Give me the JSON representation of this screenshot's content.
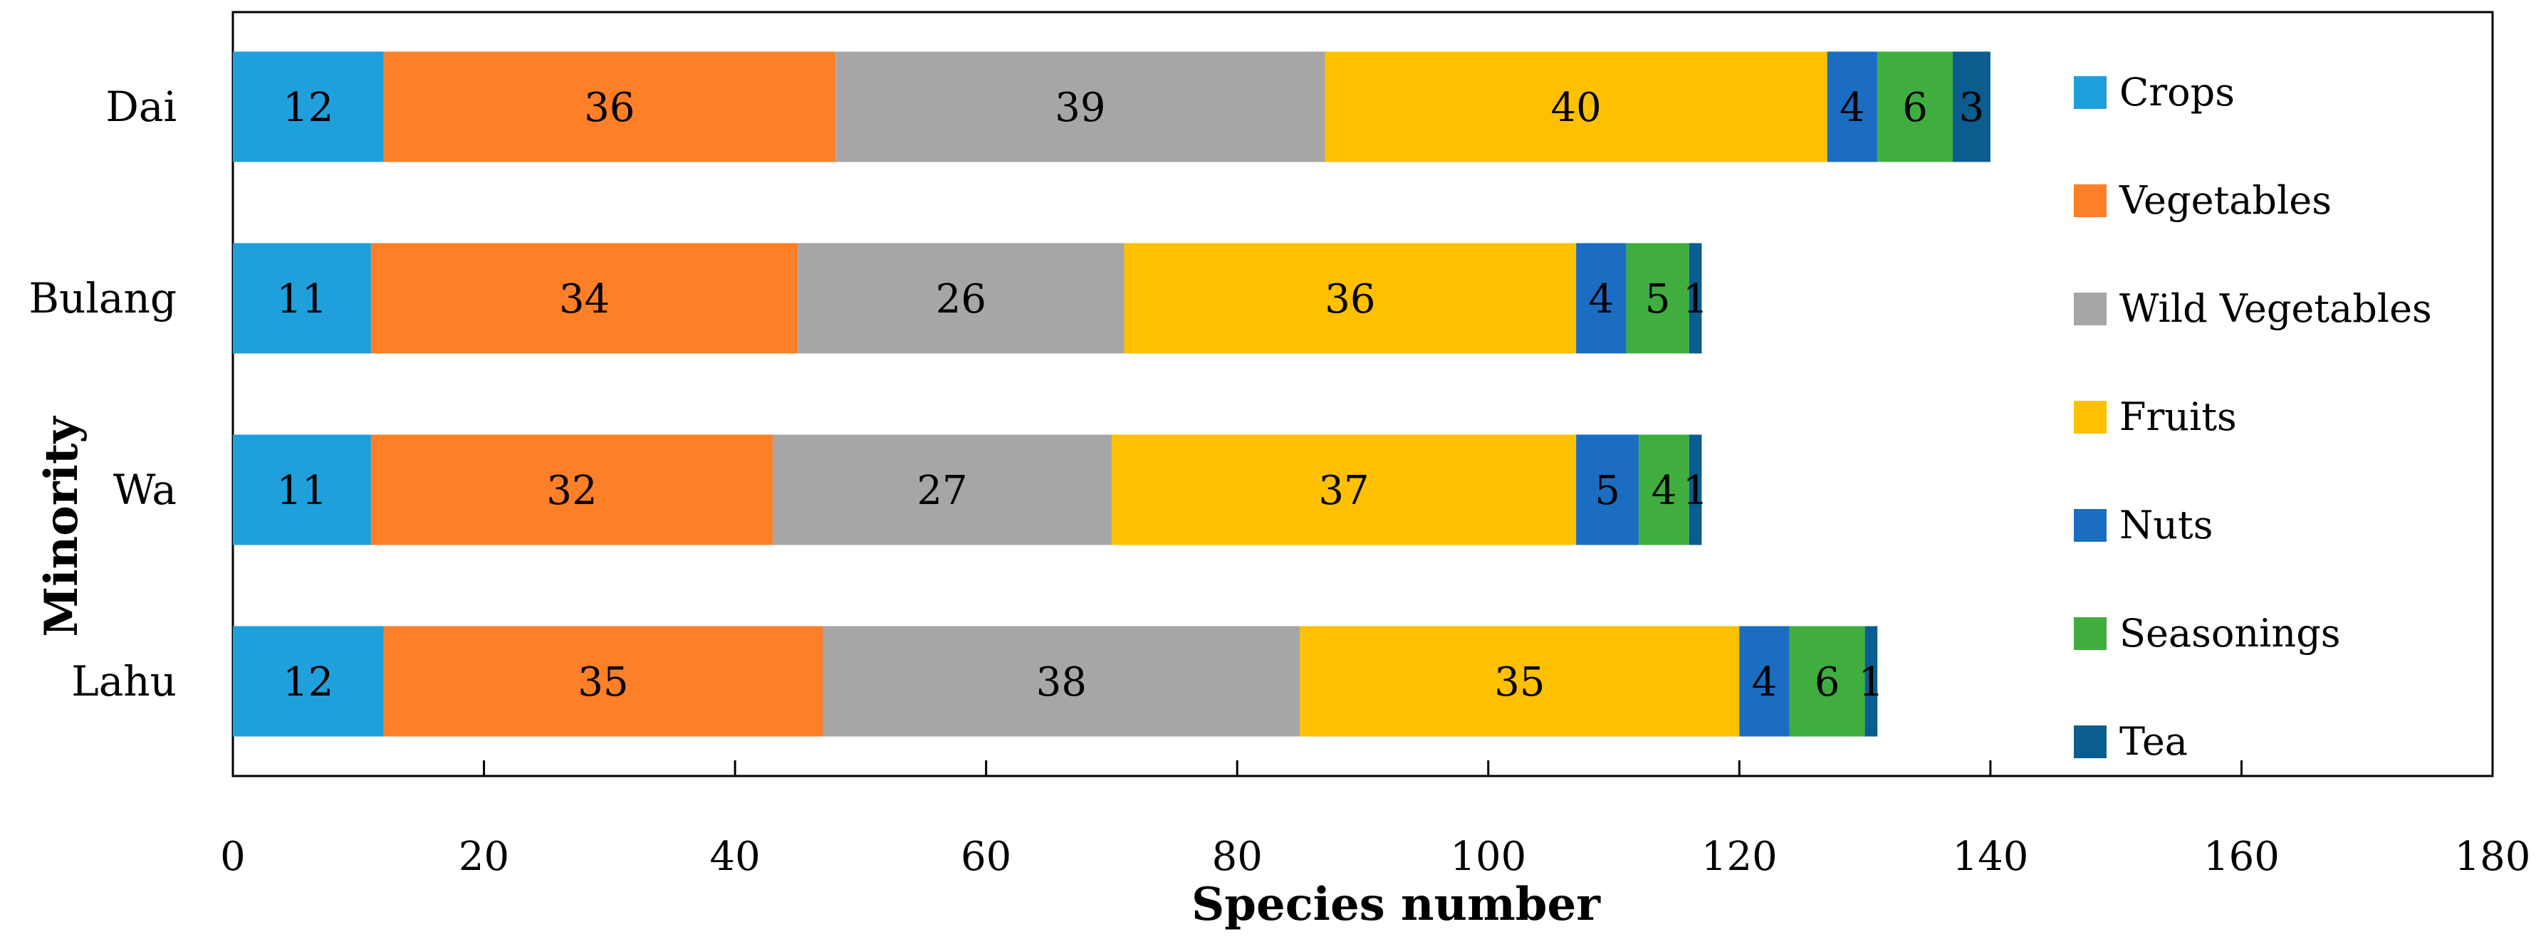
{
  "chart_data": {
    "type": "bar",
    "orientation": "horizontal",
    "stacked": true,
    "categories": [
      "Dai",
      "Bulang",
      "Wa",
      "Lahu"
    ],
    "series": [
      {
        "name": "Crops",
        "color": "#1f9fdb",
        "values": [
          12,
          11,
          11,
          12
        ]
      },
      {
        "name": "Vegetables",
        "color": "#fd7f27",
        "values": [
          36,
          34,
          32,
          35
        ]
      },
      {
        "name": "Wild Vegetables",
        "color": "#a6a6a6",
        "values": [
          39,
          26,
          27,
          38
        ]
      },
      {
        "name": "Fruits",
        "color": "#fec001",
        "values": [
          40,
          36,
          37,
          35
        ]
      },
      {
        "name": "Nuts",
        "color": "#1b6dc1",
        "values": [
          4,
          4,
          5,
          4
        ]
      },
      {
        "name": "Seasonings",
        "color": "#3fae3f",
        "values": [
          6,
          5,
          4,
          6
        ]
      },
      {
        "name": "Tea",
        "color": "#0b5c8f",
        "values": [
          3,
          1,
          1,
          1
        ]
      }
    ],
    "xlabel": "Species number",
    "ylabel": "Minority",
    "xlim": [
      0,
      180
    ],
    "xticks": [
      0,
      20,
      40,
      60,
      80,
      100,
      120,
      140,
      160,
      180
    ],
    "grid": false,
    "legend": "right"
  }
}
